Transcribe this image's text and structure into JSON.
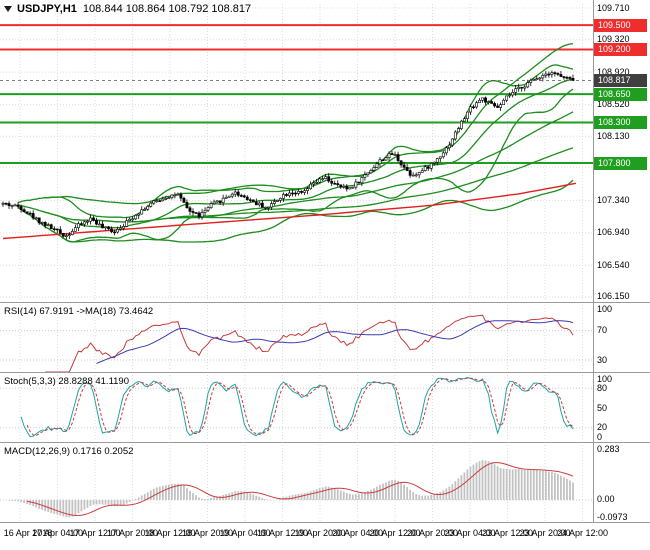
{
  "header": {
    "symbol": "USDJPY,H1",
    "ohlc": "108.844 108.864 108.792 108.817"
  },
  "chart_data": {
    "type": "candlestick",
    "symbol": "USDJPY",
    "timeframe": "H1",
    "main": {
      "last_price": 108.817,
      "price_range": [
        106.1,
        109.76
      ],
      "ticks": [
        109.71,
        109.32,
        108.92,
        108.52,
        108.13,
        107.75,
        107.34,
        106.94,
        106.54,
        106.15
      ],
      "levels": [
        {
          "price": 109.5,
          "label": "109.500",
          "color": "#ee2e2e"
        },
        {
          "price": 109.2,
          "label": "109.200",
          "color": "#ee2e2e"
        },
        {
          "price": 108.65,
          "label": "108.650",
          "color": "#1f9e1f"
        },
        {
          "price": 108.3,
          "label": "108.300",
          "color": "#1f9e1f"
        },
        {
          "price": 107.8,
          "label": "107.800",
          "color": "#1f9e1f"
        }
      ],
      "current_price_label": {
        "price": 108.817,
        "label": "108.817",
        "color": "#3f3f3f"
      },
      "candles_count": 190,
      "price_path": [
        [
          0,
          107.3
        ],
        [
          0.03,
          107.26
        ],
        [
          0.06,
          107.1
        ],
        [
          0.09,
          106.98
        ],
        [
          0.11,
          106.9
        ],
        [
          0.13,
          107.02
        ],
        [
          0.155,
          107.12
        ],
        [
          0.175,
          107.0
        ],
        [
          0.195,
          106.96
        ],
        [
          0.215,
          107.06
        ],
        [
          0.235,
          107.18
        ],
        [
          0.26,
          107.3
        ],
        [
          0.285,
          107.38
        ],
        [
          0.305,
          107.42
        ],
        [
          0.325,
          107.22
        ],
        [
          0.345,
          107.15
        ],
        [
          0.365,
          107.28
        ],
        [
          0.385,
          107.35
        ],
        [
          0.405,
          107.44
        ],
        [
          0.425,
          107.38
        ],
        [
          0.445,
          107.3
        ],
        [
          0.465,
          107.25
        ],
        [
          0.485,
          107.38
        ],
        [
          0.505,
          107.45
        ],
        [
          0.525,
          107.42
        ],
        [
          0.545,
          107.55
        ],
        [
          0.565,
          107.62
        ],
        [
          0.585,
          107.52
        ],
        [
          0.605,
          107.48
        ],
        [
          0.625,
          107.58
        ],
        [
          0.645,
          107.72
        ],
        [
          0.665,
          107.85
        ],
        [
          0.685,
          107.92
        ],
        [
          0.7,
          107.78
        ],
        [
          0.715,
          107.66
        ],
        [
          0.73,
          107.68
        ],
        [
          0.755,
          107.8
        ],
        [
          0.78,
          108.0
        ],
        [
          0.8,
          108.25
        ],
        [
          0.82,
          108.48
        ],
        [
          0.84,
          108.6
        ],
        [
          0.855,
          108.52
        ],
        [
          0.87,
          108.48
        ],
        [
          0.885,
          108.62
        ],
        [
          0.905,
          108.72
        ],
        [
          0.925,
          108.8
        ],
        [
          0.945,
          108.88
        ],
        [
          0.962,
          108.93
        ],
        [
          0.98,
          108.86
        ],
        [
          1,
          108.817
        ]
      ],
      "red_ma_path": [
        [
          0,
          106.87
        ],
        [
          0.3,
          107.03
        ],
        [
          0.55,
          107.16
        ],
        [
          0.75,
          107.28
        ],
        [
          0.9,
          107.42
        ],
        [
          1,
          107.55
        ]
      ],
      "red_ma_color": "#e02020",
      "bands_color": "#1e8c1e",
      "bollinger": {
        "period": 20,
        "deviation": 2
      },
      "bollinger2": {
        "period": 55,
        "deviation": 2
      },
      "ma_fast_period": 50,
      "ma_slow_period": 110
    },
    "rsi": {
      "label": "RSI(14) 67.9191 ->MA(18) 73.4642",
      "period": 14,
      "ma_period": 18,
      "value": 67.9191,
      "ma_value": 73.4642,
      "range": [
        15,
        105
      ],
      "ticks": [
        100,
        70,
        30
      ],
      "levels": [
        70,
        30
      ],
      "line_color": "#c43c3c",
      "ma_color": "#3b3bb0"
    },
    "stoch": {
      "label": "Stoch(5,3,3) 28.8288 41.1190",
      "k_period": 5,
      "d_period": 3,
      "slowing": 3,
      "value": 28.8288,
      "signal_value": 41.119,
      "range": [
        0,
        100
      ],
      "ticks": [
        100,
        80,
        50,
        20,
        0
      ],
      "levels": [
        80,
        20
      ],
      "k_color": "#1fa3a3",
      "d_color": "#cc3b3b"
    },
    "macd": {
      "label": "MACD(12,26,9) 0.1716 0.2052",
      "fast": 12,
      "slow": 26,
      "signal": 9,
      "value": 0.1716,
      "signal_value": 0.2052,
      "range": [
        -0.115,
        0.3
      ],
      "ticks": [
        0.283,
        0,
        -0.0973
      ],
      "tick_labels": [
        "0.283",
        "0.00",
        "-0.0973"
      ],
      "hist_color": "#c2c2c2",
      "signal_color": "#cc3b3b"
    },
    "time_labels": [
      "16 Apr 2018",
      "17 Apr 04:00",
      "17 Apr 12:00",
      "17 Apr 20:00",
      "18 Apr 12:00",
      "18 Apr 20:00",
      "19 Apr 04:00",
      "19 Apr 12:00",
      "19 Apr 20:00",
      "20 Apr 04:00",
      "20 Apr 12:00",
      "20 Apr 20:00",
      "23 Apr 04:00",
      "23 Apr 12:00",
      "23 Apr 20:00",
      "24 Apr 12:00"
    ]
  },
  "colors": {
    "bull": "#ffffff",
    "bear": "#000000",
    "candle_outline": "#000000",
    "grid": "#dcdcdc",
    "separator": "#9a9a9a",
    "background": "#ffffff"
  }
}
